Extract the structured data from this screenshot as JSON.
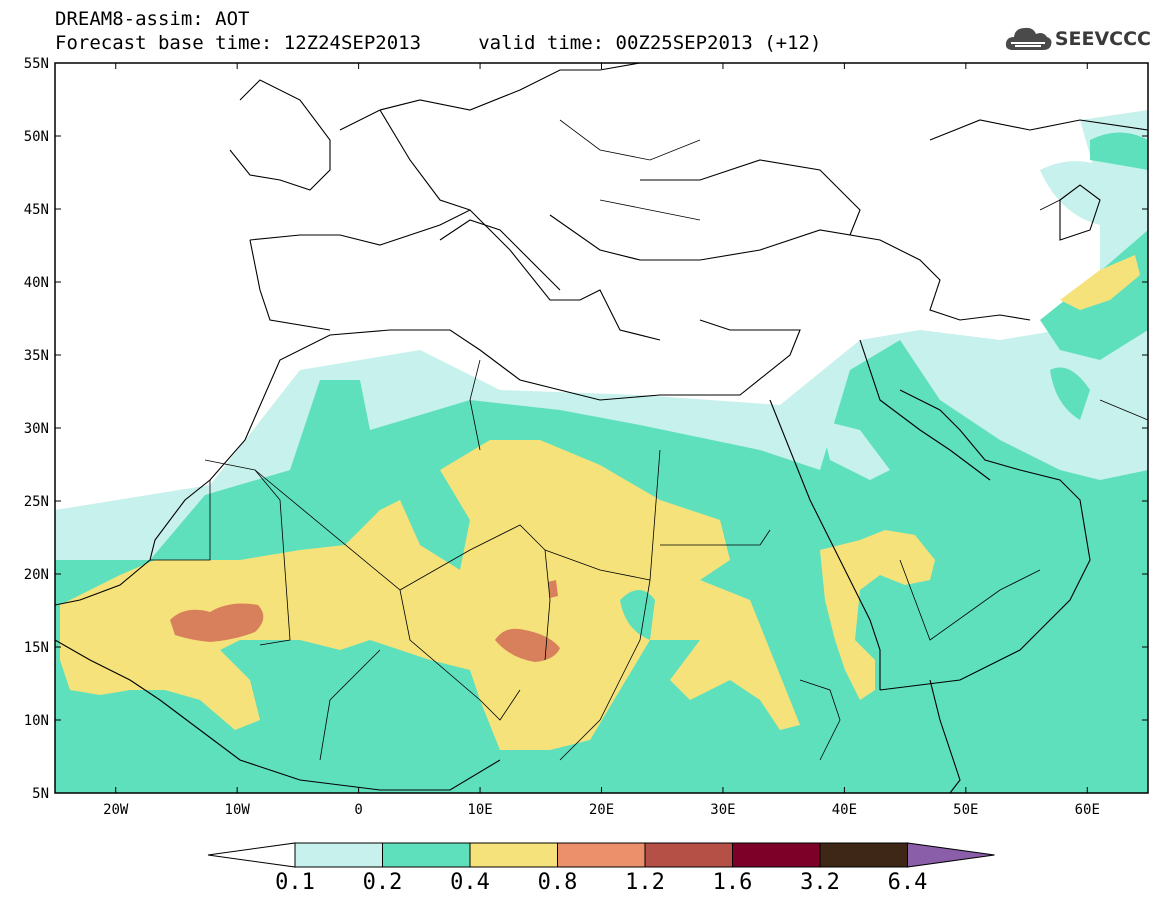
{
  "header": {
    "title_line1": "DREAM8-assim: AOT",
    "title_line2": "Forecast base time: 12Z24SEP2013     valid time: 00Z25SEP2013 (+12)"
  },
  "logo": {
    "text": "SEEVCCC",
    "icon": "cloud-icon"
  },
  "map": {
    "lon_range": [
      -25,
      65
    ],
    "lat_range": [
      5,
      55
    ],
    "lat_ticks": [
      "5N",
      "10N",
      "15N",
      "20N",
      "25N",
      "30N",
      "35N",
      "40N",
      "45N",
      "50N",
      "55N"
    ],
    "lon_ticks": [
      "20W",
      "10W",
      "0",
      "10E",
      "20E",
      "30E",
      "40E",
      "50E",
      "60E"
    ]
  },
  "colorbar": {
    "labels": [
      "0.1",
      "0.2",
      "0.4",
      "0.8",
      "1.2",
      "1.6",
      "3.2",
      "6.4"
    ],
    "colors": [
      "#ffffff",
      "#c7f1ec",
      "#5fe0bd",
      "#f5e27a",
      "#eb906a",
      "#b45046",
      "#7d0029",
      "#3e2716",
      "#8a5ea8"
    ]
  },
  "chart_data": {
    "type": "heatmap",
    "variable": "AOT",
    "levels": [
      0.1,
      0.2,
      0.4,
      0.8,
      1.2,
      1.6,
      3.2,
      6.4
    ]
  }
}
